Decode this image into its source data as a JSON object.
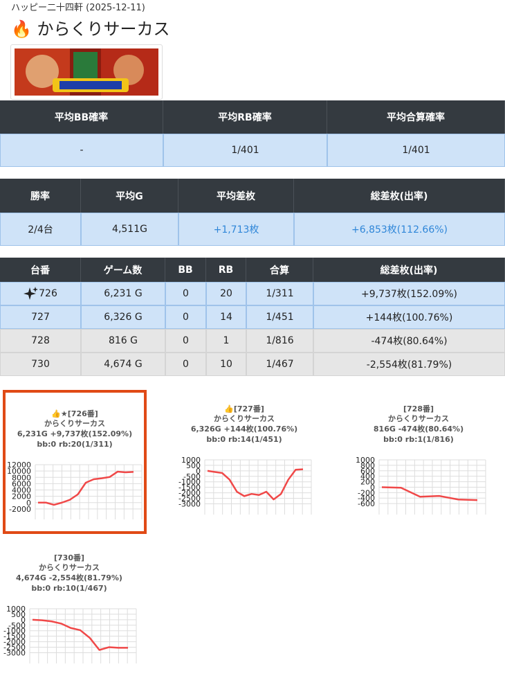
{
  "header": {
    "shop": "ハッピー二十四軒 (2025-12-11)",
    "icon": "🔥",
    "title": "からくりサーカス"
  },
  "summary_table": {
    "headers": [
      "平均BB確率",
      "平均RB確率",
      "平均合算確率"
    ],
    "rows": [
      [
        "-",
        "1/401",
        "1/401"
      ]
    ]
  },
  "stats_table": {
    "headers": [
      "勝率",
      "平均G",
      "平均差枚",
      "総差枚(出率)"
    ],
    "rows": [
      [
        "2/4台",
        "4,511G",
        "+1,713枚",
        "+6,853枚(112.66%)"
      ]
    ]
  },
  "machines_table": {
    "headers": [
      "台番",
      "ゲーム数",
      "BB",
      "RB",
      "合算",
      "総差枚(出率)"
    ],
    "rows": [
      [
        "726",
        "6,231 G",
        "0",
        "20",
        "1/311",
        "+9,737枚(152.09%)"
      ],
      [
        "727",
        "6,326 G",
        "0",
        "14",
        "1/451",
        "+144枚(100.76%)"
      ],
      [
        "728",
        "816 G",
        "0",
        "1",
        "1/816",
        "-474枚(80.64%)"
      ],
      [
        "730",
        "4,674 G",
        "0",
        "10",
        "1/467",
        "-2,554枚(81.79%)"
      ]
    ]
  },
  "chart_data": [
    {
      "type": "line",
      "title": "👍★[726番]",
      "subtitle": "からくりサーカス",
      "annotations": [
        "6,231G +9,737枚(152.09%)",
        "bb:0 rb:20(1/311)"
      ],
      "highlighted": true,
      "ylim": [
        -4000,
        12000
      ],
      "yticks": [
        12000,
        10000,
        8000,
        6000,
        4000,
        2000,
        0,
        -2000
      ],
      "grid": true,
      "series": [
        {
          "color": "#f04848",
          "values": [
            0,
            0,
            -700,
            0,
            900,
            2600,
            6300,
            7400,
            7700,
            8100,
            9800,
            9600,
            9737
          ]
        }
      ]
    },
    {
      "type": "line",
      "title": "👍[727番]",
      "subtitle": "からくりサーカス",
      "annotations": [
        "6,326G +144枚(100.76%)",
        "bb:0 rb:14(1/451)"
      ],
      "ylim": [
        -3600,
        1000
      ],
      "yticks": [
        1000,
        500,
        0,
        -500,
        -1000,
        -1500,
        -2000,
        -2500,
        -3000
      ],
      "grid": true,
      "series": [
        {
          "color": "#f04848",
          "values": [
            0,
            -100,
            -200,
            -800,
            -1900,
            -2300,
            -2100,
            -2200,
            -1900,
            -2600,
            -2100,
            -800,
            100,
            144
          ]
        }
      ]
    },
    {
      "type": "line",
      "title": "[728番]",
      "subtitle": "からくりサーカス",
      "annotations": [
        "816G -474枚(80.64%)",
        "bb:0 rb:1(1/816)"
      ],
      "ylim": [
        -850,
        1000
      ],
      "yticks": [
        1000,
        800,
        600,
        400,
        200,
        0,
        -200,
        -400,
        -600
      ],
      "grid": true,
      "series": [
        {
          "color": "#f04848",
          "values": [
            0,
            -20,
            -350,
            -320,
            -450,
            -474
          ]
        }
      ]
    },
    {
      "type": "line",
      "title": "[730番]",
      "subtitle": "からくりサーカス",
      "annotations": [
        "4,674G -2,554枚(81.79%)",
        "bb:0 rb:10(1/467)"
      ],
      "ylim": [
        -3600,
        1000
      ],
      "yticks": [
        1000,
        500,
        0,
        -500,
        -1000,
        -1500,
        -2000,
        -2500,
        -3000
      ],
      "grid": true,
      "series": [
        {
          "color": "#f04848",
          "values": [
            0,
            -50,
            -150,
            -350,
            -750,
            -950,
            -1650,
            -2750,
            -2500,
            -2550,
            -2554
          ]
        }
      ]
    }
  ]
}
